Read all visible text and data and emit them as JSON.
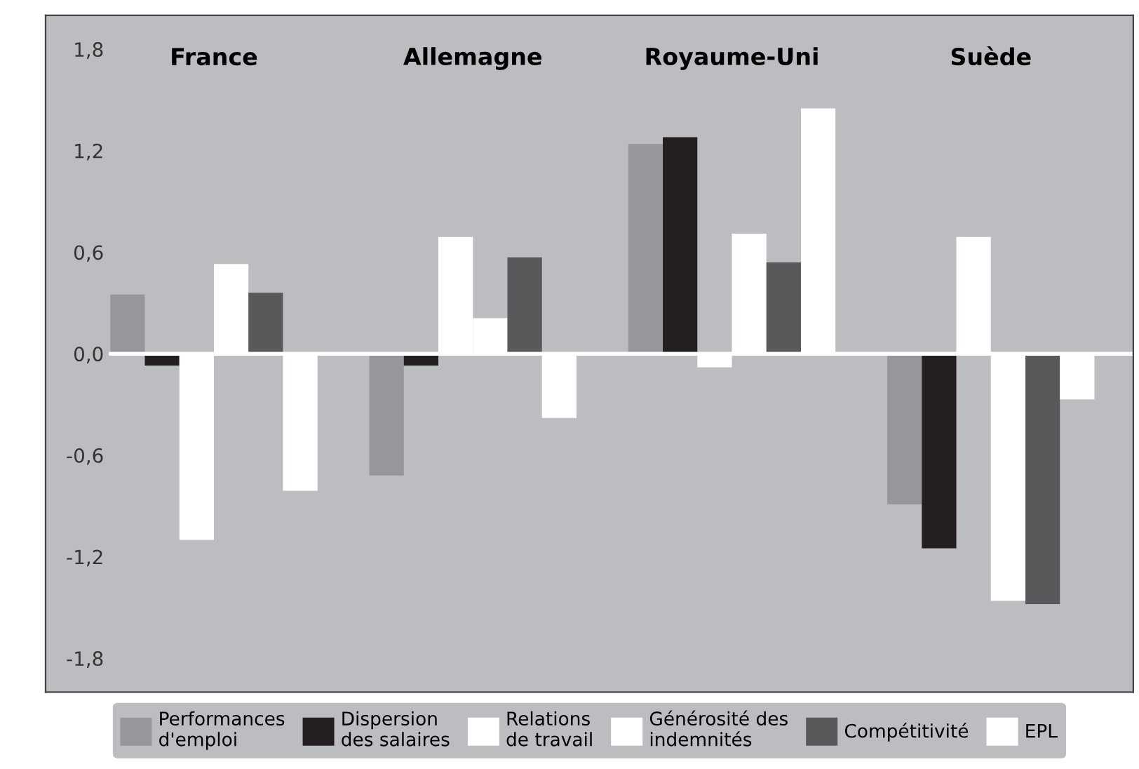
{
  "chart_data": {
    "type": "bar",
    "categories": [
      "France",
      "Allemagne",
      "Royaume-Uni",
      "Suède"
    ],
    "series": [
      {
        "name": "Performances\nd'emploi",
        "color": "#96979b",
        "values": [
          0.35,
          -0.72,
          1.24,
          -0.89
        ]
      },
      {
        "name": "Dispersion\ndes salaires",
        "color": "#231f20",
        "values": [
          -0.07,
          -0.07,
          1.28,
          -1.15
        ]
      },
      {
        "name": "Relations\nde travail",
        "color": "#ffffff",
        "values": [
          -1.1,
          0.69,
          -0.08,
          0.69
        ]
      },
      {
        "name": "Générosité des\nindemnités",
        "color": "#ffffff",
        "values": [
          0.53,
          0.21,
          0.71,
          -1.46
        ]
      },
      {
        "name": "Compétitivité",
        "color": "#58595b",
        "values": [
          0.36,
          0.57,
          0.54,
          -1.48
        ]
      },
      {
        "name": "EPL",
        "color": "#ffffff",
        "values": [
          -0.81,
          -0.38,
          1.45,
          -0.27
        ]
      }
    ],
    "ylim": [
      -2.0,
      2.0
    ],
    "yticks": [
      {
        "value": -1.8,
        "label": "-1,8"
      },
      {
        "value": -1.2,
        "label": "-1,2"
      },
      {
        "value": -0.6,
        "label": "-0,6"
      },
      {
        "value": 0,
        "label": "0,0"
      },
      {
        "value": 0.6,
        "label": "0,6"
      },
      {
        "value": 1.2,
        "label": "1,2"
      },
      {
        "value": 1.8,
        "label": "1,8"
      }
    ],
    "ref_lines": [
      {
        "axis": "y",
        "value": 0,
        "color": "#ffffff"
      }
    ],
    "grid": false,
    "legend": "bottom"
  }
}
